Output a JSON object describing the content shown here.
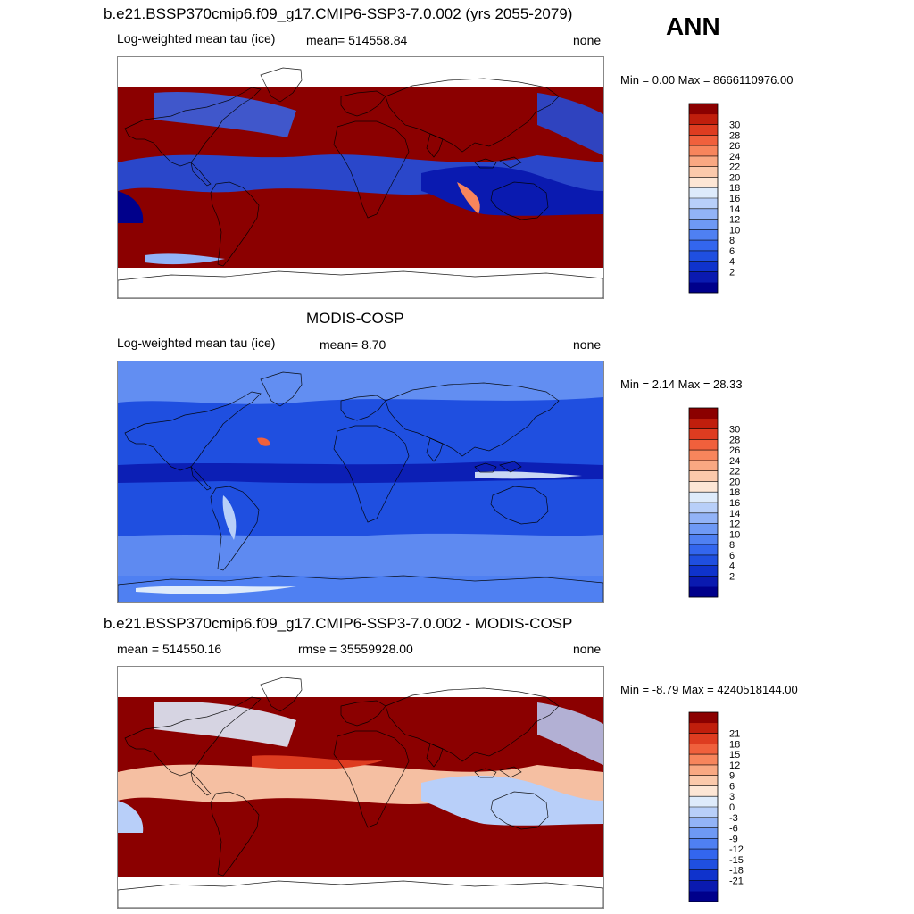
{
  "season": "ANN",
  "panels": [
    {
      "title": "b.e21.BSSP370cmip6.f09_g17.CMIP6-SSP3-7.0.002 (yrs 2055-2079)",
      "left_label": "Log-weighted mean tau (ice)",
      "center_label": "mean= 514558.84",
      "right_label": "none",
      "minmax": "Min =   0.00 Max = 8666110976.00",
      "colorbar_labels": [
        "2",
        "4",
        "6",
        "8",
        "10",
        "12",
        "14",
        "16",
        "18",
        "20",
        "22",
        "24",
        "26",
        "28",
        "30"
      ],
      "colors": [
        "#00008b",
        "#0a1ab0",
        "#0f33cc",
        "#1f4fe0",
        "#3366ee",
        "#4f80f2",
        "#6e99f5",
        "#92b3f7",
        "#b8cff9",
        "#deebfb",
        "#fde6d5",
        "#fbc9ab",
        "#f9a882",
        "#f7855c",
        "#f0603c",
        "#de3c20",
        "#c01e0c",
        "#8b0000"
      ],
      "map_style": "model",
      "chart_data": {
        "type": "heatmap",
        "title": "b.e21.BSSP370cmip6.f09_g17.CMIP6-SSP3-7.0.002 (yrs 2055-2079)",
        "variable": "Log-weighted mean tau (ice)",
        "units": "none",
        "mean": 514558.84,
        "min": 0.0,
        "max": 8666110976.0,
        "colorbar_levels": [
          2,
          4,
          6,
          8,
          10,
          12,
          14,
          16,
          18,
          20,
          22,
          24,
          26,
          28,
          30
        ]
      }
    },
    {
      "title": "MODIS-COSP",
      "left_label": "Log-weighted mean tau (ice)",
      "center_label": "mean=   8.70",
      "right_label": "none",
      "minmax": "Min =   2.14 Max =  28.33",
      "colorbar_labels": [
        "2",
        "4",
        "6",
        "8",
        "10",
        "12",
        "14",
        "16",
        "18",
        "20",
        "22",
        "24",
        "26",
        "28",
        "30"
      ],
      "colors": [
        "#00008b",
        "#0a1ab0",
        "#0f33cc",
        "#1f4fe0",
        "#3366ee",
        "#4f80f2",
        "#6e99f5",
        "#92b3f7",
        "#b8cff9",
        "#deebfb",
        "#fde6d5",
        "#fbc9ab",
        "#f9a882",
        "#f7855c",
        "#f0603c",
        "#de3c20",
        "#c01e0c",
        "#8b0000"
      ],
      "map_style": "obs",
      "chart_data": {
        "type": "heatmap",
        "title": "MODIS-COSP",
        "variable": "Log-weighted mean tau (ice)",
        "units": "none",
        "mean": 8.7,
        "min": 2.14,
        "max": 28.33,
        "colorbar_levels": [
          2,
          4,
          6,
          8,
          10,
          12,
          14,
          16,
          18,
          20,
          22,
          24,
          26,
          28,
          30
        ]
      }
    },
    {
      "title": "b.e21.BSSP370cmip6.f09_g17.CMIP6-SSP3-7.0.002 - MODIS-COSP",
      "left_label": "mean = 514550.16",
      "center_label": "rmse = 35559928.00",
      "right_label": "none",
      "minmax": "Min =  -8.79 Max = 4240518144.00",
      "colorbar_labels": [
        "-21",
        "-18",
        "-15",
        "-12",
        "-9",
        "-6",
        "-3",
        "0",
        "3",
        "6",
        "9",
        "12",
        "15",
        "18",
        "21"
      ],
      "colors": [
        "#00008b",
        "#0a1ab0",
        "#0f33cc",
        "#1f4fe0",
        "#3366ee",
        "#4f80f2",
        "#6e99f5",
        "#92b3f7",
        "#b8cff9",
        "#deebfb",
        "#fde6d5",
        "#fbc9ab",
        "#f9a882",
        "#f7855c",
        "#f0603c",
        "#de3c20",
        "#c01e0c",
        "#8b0000"
      ],
      "map_style": "diff",
      "chart_data": {
        "type": "heatmap",
        "title": "b.e21.BSSP370cmip6.f09_g17.CMIP6-SSP3-7.0.002 - MODIS-COSP",
        "mean": 514550.16,
        "rmse": 35559928.0,
        "units": "none",
        "min": -8.79,
        "max": 4240518144.0,
        "colorbar_levels": [
          -21,
          -18,
          -15,
          -12,
          -9,
          -6,
          -3,
          0,
          3,
          6,
          9,
          12,
          15,
          18,
          21
        ]
      }
    }
  ]
}
